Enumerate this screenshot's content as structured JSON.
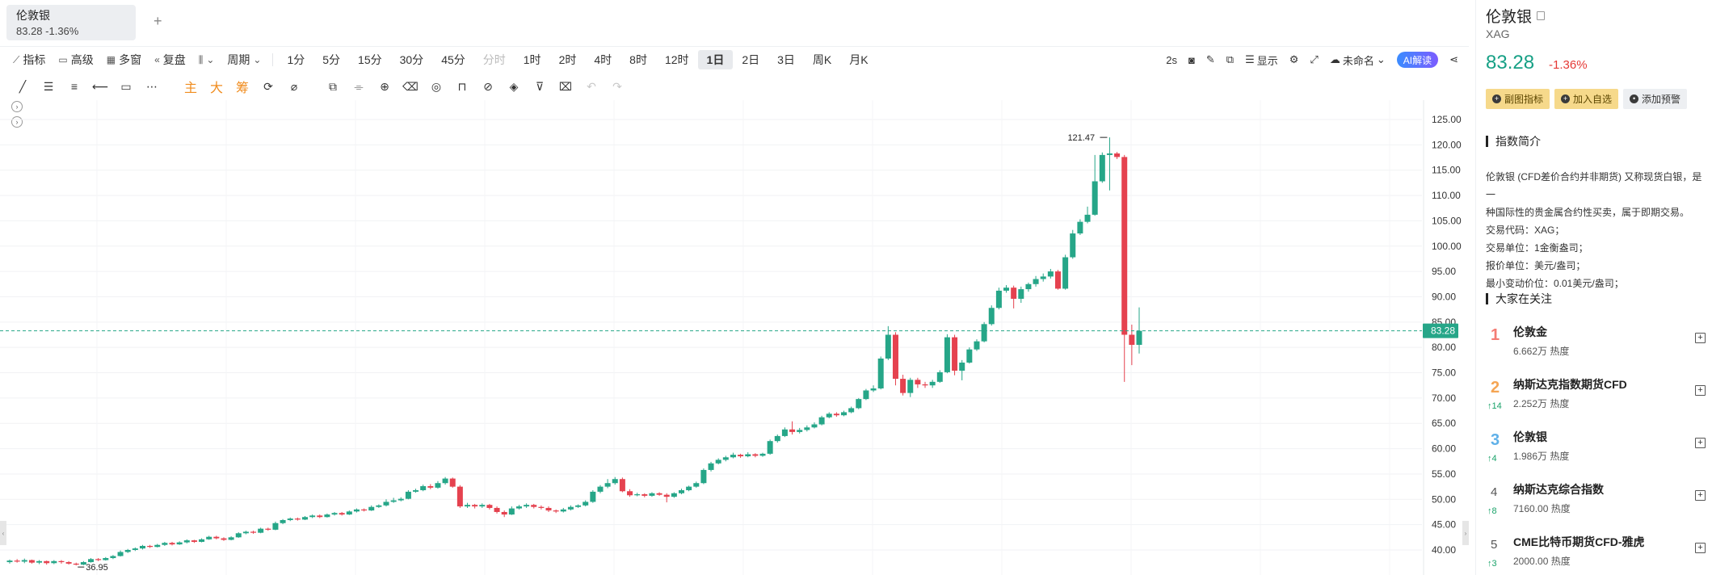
{
  "tab": {
    "name": "伦敦银",
    "quote": "83.28 -1.36%",
    "add": "+"
  },
  "toolbar": {
    "indicator": "指标",
    "advanced": "高级",
    "multi": "多窗",
    "replay": "复盘",
    "period_label": "周期",
    "periods": [
      "1分",
      "5分",
      "15分",
      "30分",
      "45分",
      "分时",
      "1时",
      "2时",
      "4时",
      "8时",
      "12时",
      "1日",
      "2日",
      "3日",
      "周K",
      "月K"
    ],
    "active_period": "1日",
    "muted_period": "分时",
    "interval": "2s",
    "display": "显示",
    "unnamed": "未命名",
    "ai": "AI解读"
  },
  "tools": {
    "main": "主",
    "big": "大",
    "chip": "筹"
  },
  "panel": {
    "name": "伦敦银",
    "code": "XAG",
    "price": "83.28",
    "change": "-1.36%",
    "btn_sub": "副图指标",
    "btn_fav": "加入自选",
    "btn_alert": "添加预警",
    "intro_title": "指数简介",
    "intro_lines": [
      "伦敦银 (CFD差价合约并非期货) 又称现货白银，是一",
      "种国际性的贵金属合约性买卖，属于即期交易。",
      "交易代码：XAG；",
      "交易单位：1金衡盎司；",
      "报价单位：美元/盎司；",
      "最小变动价位：0.01美元/盎司；"
    ],
    "watch_title": "大家在关注",
    "watch": [
      {
        "rank": "1",
        "name": "伦敦金",
        "heat": "6.662万 热度",
        "up": ""
      },
      {
        "rank": "2",
        "name": "纳斯达克指数期货CFD",
        "heat": "2.252万 热度",
        "up": "↑14"
      },
      {
        "rank": "3",
        "name": "伦敦银",
        "heat": "1.986万 热度",
        "up": "↑4"
      },
      {
        "rank": "4",
        "name": "纳斯达克综合指数",
        "heat": "7160.00 热度",
        "up": "↑8"
      },
      {
        "rank": "5",
        "name": "CME比特币期货CFD-雅虎",
        "heat": "2000.00 热度",
        "up": "↑3"
      }
    ]
  },
  "colors": {
    "up": "#26a688",
    "down": "#e5424f",
    "last_line": "#26a688"
  },
  "chart_data": {
    "type": "candlestick",
    "y_ticks": [
      "125.00",
      "120.00",
      "115.00",
      "110.00",
      "105.00",
      "100.00",
      "95.00",
      "90.00",
      "85.00",
      "80.00",
      "75.00",
      "70.00",
      "65.00",
      "60.00",
      "55.00",
      "50.00",
      "45.00",
      "40.00"
    ],
    "ylim": [
      35,
      127
    ],
    "last_price": "83.28",
    "high_label": "121.47",
    "low_label": "36.95",
    "high_value": 121.47,
    "low_value": 36.95,
    "candles": [
      [
        37.6,
        37.9,
        37.3,
        38.1
      ],
      [
        37.9,
        37.7,
        37.5,
        38.2
      ],
      [
        37.7,
        38.0,
        37.4,
        38.3
      ],
      [
        38.0,
        37.5,
        37.3,
        38.1
      ],
      [
        37.5,
        37.8,
        37.2,
        38.0
      ],
      [
        37.8,
        37.4,
        37.1,
        37.9
      ],
      [
        37.4,
        37.8,
        37.2,
        38.0
      ],
      [
        37.8,
        37.6,
        37.3,
        38.0
      ],
      [
        37.6,
        37.3,
        37.1,
        37.8
      ],
      [
        37.3,
        37.1,
        36.95,
        37.5
      ],
      [
        37.1,
        37.6,
        37.0,
        37.8
      ],
      [
        37.6,
        38.2,
        37.5,
        38.4
      ],
      [
        38.2,
        38.0,
        37.8,
        38.4
      ],
      [
        38.0,
        38.4,
        37.9,
        38.6
      ],
      [
        38.4,
        38.8,
        38.2,
        39.0
      ],
      [
        38.8,
        39.6,
        38.7,
        39.9
      ],
      [
        39.6,
        40.0,
        39.4,
        40.2
      ],
      [
        40.0,
        40.3,
        39.8,
        40.5
      ],
      [
        40.3,
        40.8,
        40.1,
        41.0
      ],
      [
        40.8,
        40.6,
        40.4,
        41.0
      ],
      [
        40.6,
        41.0,
        40.5,
        41.2
      ],
      [
        41.0,
        41.4,
        40.8,
        41.6
      ],
      [
        41.4,
        41.1,
        40.9,
        41.6
      ],
      [
        41.1,
        41.5,
        41.0,
        41.7
      ],
      [
        41.5,
        41.9,
        41.3,
        42.1
      ],
      [
        41.9,
        41.6,
        41.4,
        42.0
      ],
      [
        41.6,
        42.1,
        41.5,
        42.3
      ],
      [
        42.1,
        42.6,
        42.0,
        42.8
      ],
      [
        42.6,
        42.3,
        42.1,
        42.8
      ],
      [
        42.3,
        42.0,
        41.8,
        42.5
      ],
      [
        42.0,
        42.5,
        41.9,
        42.7
      ],
      [
        42.5,
        43.3,
        42.4,
        43.5
      ],
      [
        43.3,
        43.6,
        43.1,
        43.8
      ],
      [
        43.6,
        43.4,
        43.2,
        43.8
      ],
      [
        43.4,
        44.2,
        43.3,
        44.4
      ],
      [
        44.2,
        44.0,
        43.8,
        44.4
      ],
      [
        44.0,
        45.3,
        43.9,
        45.6
      ],
      [
        45.3,
        45.9,
        45.1,
        46.1
      ],
      [
        45.9,
        46.2,
        45.7,
        46.4
      ],
      [
        46.2,
        46.0,
        45.8,
        46.4
      ],
      [
        46.0,
        46.5,
        45.9,
        46.7
      ],
      [
        46.5,
        46.8,
        46.3,
        47.0
      ],
      [
        46.8,
        46.5,
        46.3,
        47.0
      ],
      [
        46.5,
        47.0,
        46.4,
        47.2
      ],
      [
        47.0,
        47.3,
        46.8,
        47.5
      ],
      [
        47.3,
        47.0,
        46.8,
        47.5
      ],
      [
        47.0,
        47.6,
        46.9,
        47.8
      ],
      [
        47.6,
        48.0,
        47.4,
        48.2
      ],
      [
        48.0,
        47.8,
        47.6,
        48.2
      ],
      [
        47.8,
        48.5,
        47.7,
        48.8
      ],
      [
        48.5,
        48.8,
        48.3,
        49.0
      ],
      [
        48.8,
        49.5,
        48.6,
        50.0
      ],
      [
        49.5,
        49.8,
        49.3,
        50.3
      ],
      [
        49.8,
        50.1,
        49.6,
        50.4
      ],
      [
        50.1,
        51.5,
        50.0,
        51.8
      ],
      [
        51.5,
        51.8,
        51.3,
        52.1
      ],
      [
        51.8,
        52.6,
        51.6,
        52.9
      ],
      [
        52.6,
        52.3,
        52.0,
        53.0
      ],
      [
        52.3,
        53.2,
        52.1,
        53.6
      ],
      [
        53.2,
        54.1,
        52.9,
        54.4
      ],
      [
        54.1,
        52.5,
        52.3,
        54.3
      ],
      [
        52.5,
        48.6,
        48.3,
        52.8
      ],
      [
        48.6,
        48.9,
        48.3,
        49.3
      ],
      [
        48.9,
        48.6,
        48.2,
        49.1
      ],
      [
        48.6,
        48.9,
        48.3,
        49.2
      ],
      [
        48.9,
        48.3,
        48.0,
        49.1
      ],
      [
        48.3,
        47.5,
        47.2,
        48.6
      ],
      [
        47.5,
        47.0,
        46.5,
        47.8
      ],
      [
        47.0,
        48.2,
        46.9,
        48.6
      ],
      [
        48.2,
        48.6,
        48.0,
        48.9
      ],
      [
        48.6,
        48.9,
        48.3,
        49.2
      ],
      [
        48.9,
        48.5,
        48.2,
        49.1
      ],
      [
        48.5,
        48.3,
        48.0,
        48.8
      ],
      [
        48.3,
        47.8,
        47.5,
        48.6
      ],
      [
        47.8,
        47.6,
        47.3,
        48.0
      ],
      [
        47.6,
        48.0,
        47.4,
        48.3
      ],
      [
        48.0,
        48.5,
        47.8,
        48.8
      ],
      [
        48.5,
        48.8,
        48.3,
        49.0
      ],
      [
        48.8,
        49.5,
        48.6,
        49.8
      ],
      [
        49.5,
        51.5,
        49.3,
        51.8
      ],
      [
        51.5,
        52.5,
        51.2,
        52.8
      ],
      [
        52.5,
        53.2,
        52.2,
        54.0
      ],
      [
        53.2,
        54.0,
        52.9,
        54.4
      ],
      [
        54.0,
        51.6,
        51.4,
        54.3
      ],
      [
        51.6,
        50.8,
        50.5,
        52.0
      ],
      [
        50.8,
        51.0,
        50.6,
        51.3
      ],
      [
        51.0,
        50.7,
        50.4,
        51.2
      ],
      [
        50.7,
        51.2,
        50.5,
        51.4
      ],
      [
        51.2,
        50.9,
        50.7,
        51.4
      ],
      [
        50.9,
        50.5,
        49.4,
        51.2
      ],
      [
        50.5,
        51.2,
        50.3,
        51.4
      ],
      [
        51.2,
        51.8,
        51.0,
        52.1
      ],
      [
        51.8,
        52.5,
        51.6,
        52.7
      ],
      [
        52.5,
        53.2,
        52.3,
        53.5
      ],
      [
        53.2,
        55.8,
        53.0,
        56.1
      ],
      [
        55.8,
        57.1,
        55.5,
        57.4
      ],
      [
        57.1,
        57.8,
        56.9,
        58.1
      ],
      [
        57.8,
        58.3,
        57.5,
        58.6
      ],
      [
        58.3,
        58.8,
        58.1,
        59.2
      ],
      [
        58.8,
        58.5,
        58.2,
        59.0
      ],
      [
        58.5,
        58.9,
        58.3,
        59.3
      ],
      [
        58.9,
        58.6,
        58.3,
        59.1
      ],
      [
        58.6,
        59.0,
        58.4,
        59.2
      ],
      [
        59.0,
        61.5,
        58.8,
        61.8
      ],
      [
        61.5,
        62.5,
        61.2,
        62.8
      ],
      [
        62.5,
        63.8,
        62.3,
        64.2
      ],
      [
        63.8,
        63.3,
        62.8,
        65.4
      ],
      [
        63.3,
        63.7,
        63.0,
        64.1
      ],
      [
        63.7,
        64.2,
        63.4,
        64.6
      ],
      [
        64.2,
        64.8,
        64.0,
        65.2
      ],
      [
        64.8,
        66.2,
        64.6,
        66.5
      ],
      [
        66.2,
        66.9,
        66.0,
        67.2
      ],
      [
        66.9,
        66.6,
        66.3,
        67.2
      ],
      [
        66.6,
        67.2,
        66.4,
        67.5
      ],
      [
        67.2,
        68.0,
        67.0,
        68.3
      ],
      [
        68.0,
        69.8,
        67.8,
        70.0
      ],
      [
        69.8,
        71.5,
        69.6,
        71.8
      ],
      [
        71.5,
        71.9,
        71.2,
        72.5
      ],
      [
        71.9,
        77.8,
        71.7,
        78.2
      ],
      [
        77.8,
        82.5,
        77.5,
        84.2
      ],
      [
        82.5,
        73.8,
        72.5,
        83.0
      ],
      [
        73.8,
        71.0,
        70.5,
        74.6
      ],
      [
        71.0,
        73.6,
        70.2,
        74.0
      ],
      [
        73.6,
        72.7,
        72.0,
        74.0
      ],
      [
        72.7,
        72.5,
        72.0,
        73.2
      ],
      [
        72.5,
        73.2,
        72.0,
        73.6
      ],
      [
        73.2,
        75.1,
        73.0,
        75.5
      ],
      [
        75.1,
        82.0,
        74.9,
        82.6
      ],
      [
        82.0,
        75.4,
        74.5,
        82.5
      ],
      [
        75.4,
        77.0,
        73.5,
        77.5
      ],
      [
        77.0,
        79.6,
        76.8,
        80.0
      ],
      [
        79.6,
        81.2,
        79.3,
        81.6
      ],
      [
        81.2,
        84.6,
        81.0,
        85.0
      ],
      [
        84.6,
        87.8,
        84.3,
        88.3
      ],
      [
        87.8,
        91.2,
        87.5,
        91.8
      ],
      [
        91.2,
        91.8,
        90.8,
        92.3
      ],
      [
        91.8,
        89.6,
        87.7,
        92.2
      ],
      [
        89.6,
        91.5,
        88.8,
        92.0
      ],
      [
        91.5,
        92.5,
        91.0,
        92.8
      ],
      [
        92.5,
        93.5,
        92.0,
        94.1
      ],
      [
        93.5,
        94.0,
        93.0,
        94.6
      ],
      [
        94.0,
        95.0,
        93.6,
        95.5
      ],
      [
        95.0,
        91.6,
        91.4,
        95.3
      ],
      [
        91.6,
        97.8,
        91.4,
        98.3
      ],
      [
        97.8,
        102.5,
        97.5,
        103.2
      ],
      [
        102.5,
        104.8,
        102.2,
        105.3
      ],
      [
        104.8,
        106.2,
        104.5,
        107.8
      ],
      [
        106.2,
        112.8,
        106.0,
        118.0
      ],
      [
        112.8,
        118.0,
        112.5,
        118.5
      ],
      [
        118.0,
        118.3,
        111.0,
        121.47
      ],
      [
        118.3,
        117.6,
        117.2,
        118.6
      ],
      [
        117.6,
        82.5,
        73.2,
        118.0
      ],
      [
        82.5,
        80.5,
        76.5,
        84.5
      ],
      [
        80.5,
        83.28,
        78.8,
        87.9
      ]
    ]
  }
}
